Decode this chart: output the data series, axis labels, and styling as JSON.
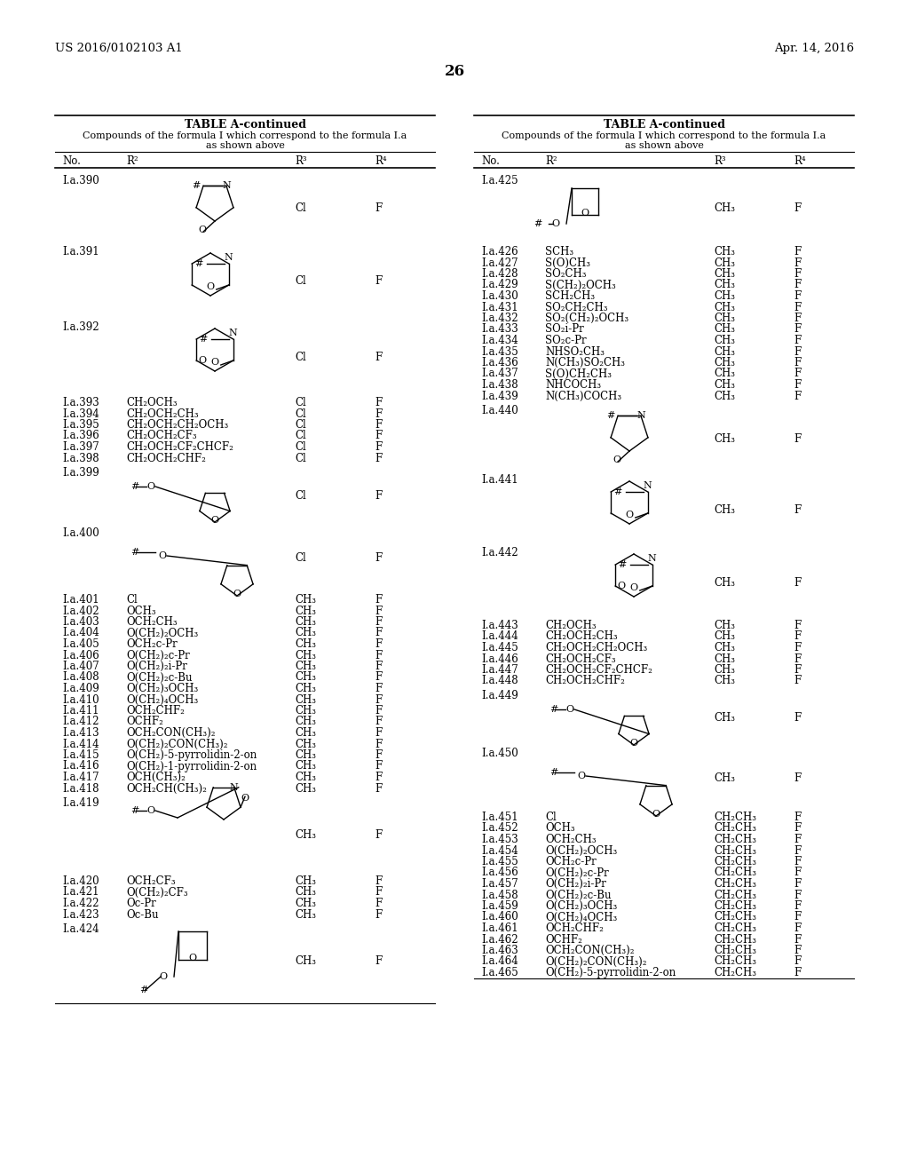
{
  "header_left": "US 2016/0102103 A1",
  "header_right": "Apr. 14, 2016",
  "page_number": "26",
  "col_headers": [
    "No.",
    "R²",
    "R³",
    "R⁴"
  ],
  "left_text_rows_1": [
    [
      "I.a.393",
      "CH₂OCH₃",
      "Cl",
      "F"
    ],
    [
      "I.a.394",
      "CH₂OCH₂CH₃",
      "Cl",
      "F"
    ],
    [
      "I.a.395",
      "CH₂OCH₂CH₂OCH₃",
      "Cl",
      "F"
    ],
    [
      "I.a.396",
      "CH₂OCH₂CF₃",
      "Cl",
      "F"
    ],
    [
      "I.a.397",
      "CH₂OCH₂CF₂CHCF₂",
      "Cl",
      "F"
    ],
    [
      "I.a.398",
      "CH₂OCH₂CHF₂",
      "Cl",
      "F"
    ]
  ],
  "left_text_rows_2": [
    [
      "I.a.401",
      "Cl",
      "CH₃",
      "F"
    ],
    [
      "I.a.402",
      "OCH₃",
      "CH₃",
      "F"
    ],
    [
      "I.a.403",
      "OCH₂CH₃",
      "CH₃",
      "F"
    ],
    [
      "I.a.404",
      "O(CH₂)₂OCH₃",
      "CH₃",
      "F"
    ],
    [
      "I.a.405",
      "OCH₂c-Pr",
      "CH₃",
      "F"
    ],
    [
      "I.a.406",
      "O(CH₂)₂c-Pr",
      "CH₃",
      "F"
    ],
    [
      "I.a.407",
      "O(CH₂)₂i-Pr",
      "CH₃",
      "F"
    ],
    [
      "I.a.408",
      "O(CH₂)₂c-Bu",
      "CH₃",
      "F"
    ],
    [
      "I.a.409",
      "O(CH₂)₃OCH₃",
      "CH₃",
      "F"
    ],
    [
      "I.a.410",
      "O(CH₂)₄OCH₃",
      "CH₃",
      "F"
    ],
    [
      "I.a.411",
      "OCH₂CHF₂",
      "CH₃",
      "F"
    ],
    [
      "I.a.412",
      "OCHF₂",
      "CH₃",
      "F"
    ],
    [
      "I.a.413",
      "OCH₂CON(CH₃)₂",
      "CH₃",
      "F"
    ],
    [
      "I.a.414",
      "O(CH₂)₂CON(CH₃)₂",
      "CH₃",
      "F"
    ],
    [
      "I.a.415",
      "O(CH₂)-5-pyrrolidin-2-on",
      "CH₃",
      "F"
    ],
    [
      "I.a.416",
      "O(CH₂)-1-pyrrolidin-2-on",
      "CH₃",
      "F"
    ],
    [
      "I.a.417",
      "OCH(CH₃)₂",
      "CH₃",
      "F"
    ],
    [
      "I.a.418",
      "OCH₂CH(CH₃)₂",
      "CH₃",
      "F"
    ]
  ],
  "left_text_rows_3": [
    [
      "I.a.420",
      "OCH₂CF₃",
      "CH₃",
      "F"
    ],
    [
      "I.a.421",
      "O(CH₂)₂CF₃",
      "CH₃",
      "F"
    ],
    [
      "I.a.422",
      "Oc-Pr",
      "CH₃",
      "F"
    ],
    [
      "I.a.423",
      "Oc-Bu",
      "CH₃",
      "F"
    ]
  ],
  "right_text_rows_1": [
    [
      "I.a.426",
      "SCH₃",
      "CH₃",
      "F"
    ],
    [
      "I.a.427",
      "S(O)CH₃",
      "CH₃",
      "F"
    ],
    [
      "I.a.428",
      "SO₂CH₃",
      "CH₃",
      "F"
    ],
    [
      "I.a.429",
      "S(CH₂)₂OCH₃",
      "CH₃",
      "F"
    ],
    [
      "I.a.430",
      "SCH₂CH₃",
      "CH₃",
      "F"
    ],
    [
      "I.a.431",
      "SO₂CH₂CH₃",
      "CH₃",
      "F"
    ],
    [
      "I.a.432",
      "SO₂(CH₂)₂OCH₃",
      "CH₃",
      "F"
    ],
    [
      "I.a.433",
      "SO₂i-Pr",
      "CH₃",
      "F"
    ],
    [
      "I.a.434",
      "SO₂c-Pr",
      "CH₃",
      "F"
    ],
    [
      "I.a.435",
      "NHSO₂CH₃",
      "CH₃",
      "F"
    ],
    [
      "I.a.436",
      "N(CH₃)SO₂CH₃",
      "CH₃",
      "F"
    ],
    [
      "I.a.437",
      "S(O)CH₂CH₃",
      "CH₃",
      "F"
    ],
    [
      "I.a.438",
      "NHCOCH₃",
      "CH₃",
      "F"
    ],
    [
      "I.a.439",
      "N(CH₃)COCH₃",
      "CH₃",
      "F"
    ]
  ],
  "right_text_rows_2": [
    [
      "I.a.443",
      "CH₂OCH₃",
      "CH₃",
      "F"
    ],
    [
      "I.a.444",
      "CH₂OCH₂CH₃",
      "CH₃",
      "F"
    ],
    [
      "I.a.445",
      "CH₂OCH₂CH₂OCH₃",
      "CH₃",
      "F"
    ],
    [
      "I.a.446",
      "CH₂OCH₂CF₃",
      "CH₃",
      "F"
    ],
    [
      "I.a.447",
      "CH₂OCH₂CF₂CHCF₂",
      "CH₃",
      "F"
    ],
    [
      "I.a.448",
      "CH₂OCH₂CHF₂",
      "CH₃",
      "F"
    ]
  ],
  "right_text_rows_3": [
    [
      "I.a.451",
      "Cl",
      "CH₂CH₃",
      "F"
    ],
    [
      "I.a.452",
      "OCH₃",
      "CH₂CH₃",
      "F"
    ],
    [
      "I.a.453",
      "OCH₂CH₃",
      "CH₂CH₃",
      "F"
    ],
    [
      "I.a.454",
      "O(CH₂)₂OCH₃",
      "CH₂CH₃",
      "F"
    ],
    [
      "I.a.455",
      "OCH₂c-Pr",
      "CH₂CH₃",
      "F"
    ],
    [
      "I.a.456",
      "O(CH₂)₂c-Pr",
      "CH₂CH₃",
      "F"
    ],
    [
      "I.a.457",
      "O(CH₂)₂i-Pr",
      "CH₂CH₃",
      "F"
    ],
    [
      "I.a.458",
      "O(CH₂)₂c-Bu",
      "CH₂CH₃",
      "F"
    ],
    [
      "I.a.459",
      "O(CH₂)₃OCH₃",
      "CH₂CH₃",
      "F"
    ],
    [
      "I.a.460",
      "O(CH₂)₄OCH₃",
      "CH₂CH₃",
      "F"
    ],
    [
      "I.a.461",
      "OCH₂CHF₂",
      "CH₂CH₃",
      "F"
    ],
    [
      "I.a.462",
      "OCHF₂",
      "CH₂CH₃",
      "F"
    ],
    [
      "I.a.463",
      "OCH₂CON(CH₃)₂",
      "CH₂CH₃",
      "F"
    ],
    [
      "I.a.464",
      "O(CH₂)₂CON(CH₃)₂",
      "CH₂CH₃",
      "F"
    ],
    [
      "I.a.465",
      "O(CH₂)-5-pyrrolidin-2-on",
      "CH₂CH₃",
      "F"
    ]
  ]
}
